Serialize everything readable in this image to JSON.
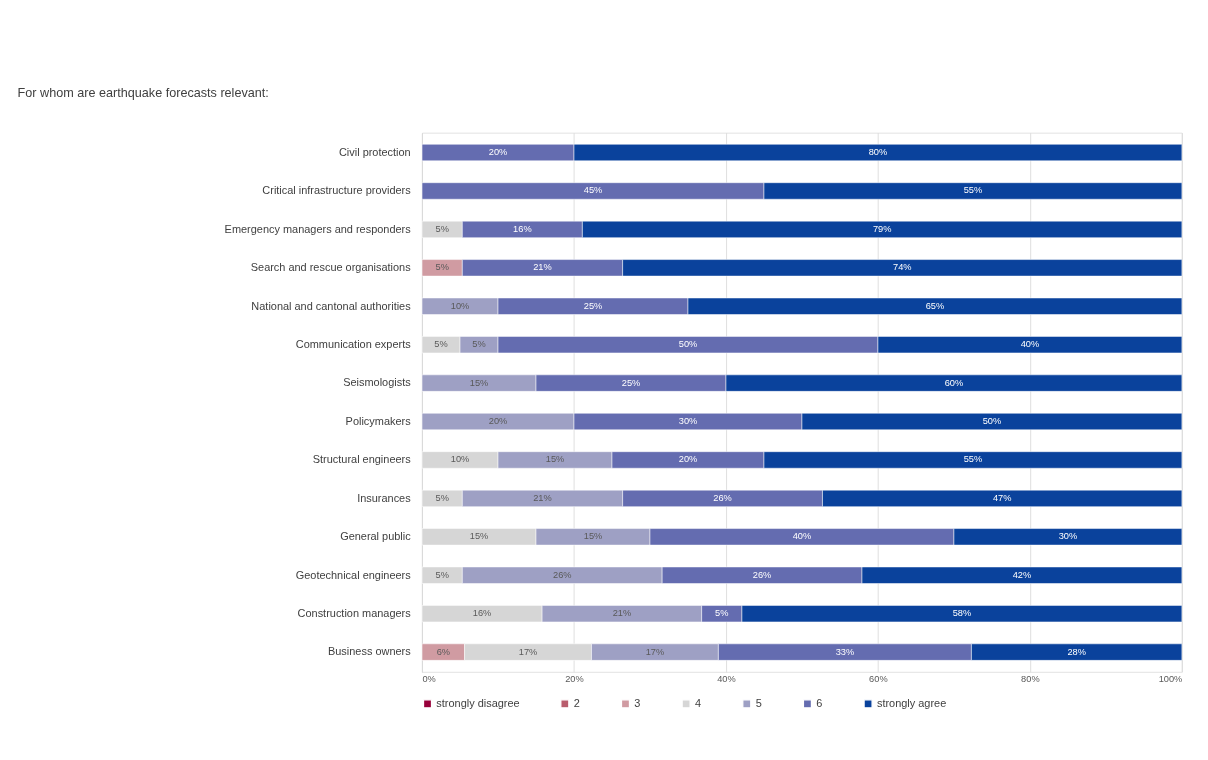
{
  "chart_data": {
    "type": "bar",
    "orientation": "horizontal",
    "stacked": true,
    "title": "For whom are earthquake forecasts relevant:",
    "categories": [
      "Civil protection",
      "Critical infrastructure providers",
      "Emergency managers and responders",
      "Search and rescue organisations",
      "National and cantonal authorities",
      "Communication experts",
      "Seismologists",
      "Policymakers",
      "Structural engineers",
      "Insurances",
      "General public ",
      "Geotechnical engineers",
      "Construction managers",
      "Business owners"
    ],
    "series": [
      {
        "name": "strongly disagree",
        "color": "#98003a",
        "values": [
          null,
          null,
          null,
          null,
          null,
          null,
          null,
          null,
          null,
          null,
          null,
          null,
          null,
          null
        ],
        "value_labels": [
          null,
          null,
          null,
          null,
          null,
          null,
          null,
          null,
          null,
          null,
          null,
          null,
          null,
          null
        ]
      },
      {
        "name": "2",
        "color": "#b85c6c",
        "values": [
          null,
          null,
          null,
          null,
          null,
          null,
          null,
          null,
          null,
          null,
          null,
          null,
          null,
          null
        ],
        "value_labels": [
          null,
          null,
          null,
          null,
          null,
          null,
          null,
          null,
          null,
          null,
          null,
          null,
          null,
          null
        ]
      },
      {
        "name": "3",
        "color": "#d09ba2",
        "values": [
          null,
          null,
          null,
          5.3,
          null,
          null,
          null,
          null,
          null,
          null,
          null,
          null,
          null,
          5.6
        ],
        "value_labels": [
          null,
          null,
          null,
          "5%",
          null,
          null,
          null,
          null,
          null,
          null,
          null,
          null,
          null,
          "6%"
        ]
      },
      {
        "name": "4",
        "color": "#d6d6d6",
        "values": [
          null,
          null,
          5.3,
          null,
          null,
          5,
          null,
          null,
          10,
          5.3,
          15,
          5.3,
          15.8,
          16.7
        ],
        "value_labels": [
          null,
          null,
          "5%",
          null,
          null,
          "5%",
          null,
          null,
          "10%",
          "5%",
          "15%",
          "5%",
          "16%",
          "17%"
        ]
      },
      {
        "name": "5",
        "color": "#9ea0c4",
        "values": [
          null,
          null,
          null,
          null,
          10,
          5,
          15,
          20,
          15,
          21.1,
          15,
          26.3,
          21.0,
          16.7
        ],
        "value_labels": [
          null,
          null,
          null,
          null,
          "10%",
          "5%",
          "15%",
          "20%",
          "15%",
          "21%",
          "15%",
          "26%",
          "21%",
          "17%"
        ]
      },
      {
        "name": "6",
        "color": "#646cb0",
        "values": [
          20,
          45,
          15.8,
          21.1,
          25,
          50,
          25,
          30,
          20,
          26.3,
          40,
          26.3,
          5.3,
          33.3
        ],
        "value_labels": [
          "20%",
          "45%",
          "16%",
          "21%",
          "25%",
          "50%",
          "25%",
          "30%",
          "20%",
          "26%",
          "40%",
          "26%",
          "5%",
          "33%"
        ]
      },
      {
        "name": "strongly agree",
        "color": "#0a429c",
        "values": [
          80,
          55,
          78.9,
          73.6,
          65,
          40,
          60,
          50,
          55,
          47.3,
          30,
          42.1,
          57.9,
          27.7
        ],
        "value_labels": [
          "80%",
          "55%",
          "79%",
          "74%",
          "65%",
          "40%",
          "60%",
          "50%",
          "55%",
          "47%",
          "30%",
          "42%",
          "58%",
          "28%"
        ]
      }
    ],
    "xlim": [
      0,
      100
    ],
    "xticks": [
      {
        "value": 0,
        "label": "0%"
      },
      {
        "value": 20,
        "label": "20%"
      },
      {
        "value": 40,
        "label": "40%"
      },
      {
        "value": 60,
        "label": "60%"
      },
      {
        "value": 80,
        "label": "80%"
      },
      {
        "value": 100,
        "label": "100%"
      }
    ],
    "grid": "x",
    "legend": "bottom"
  }
}
